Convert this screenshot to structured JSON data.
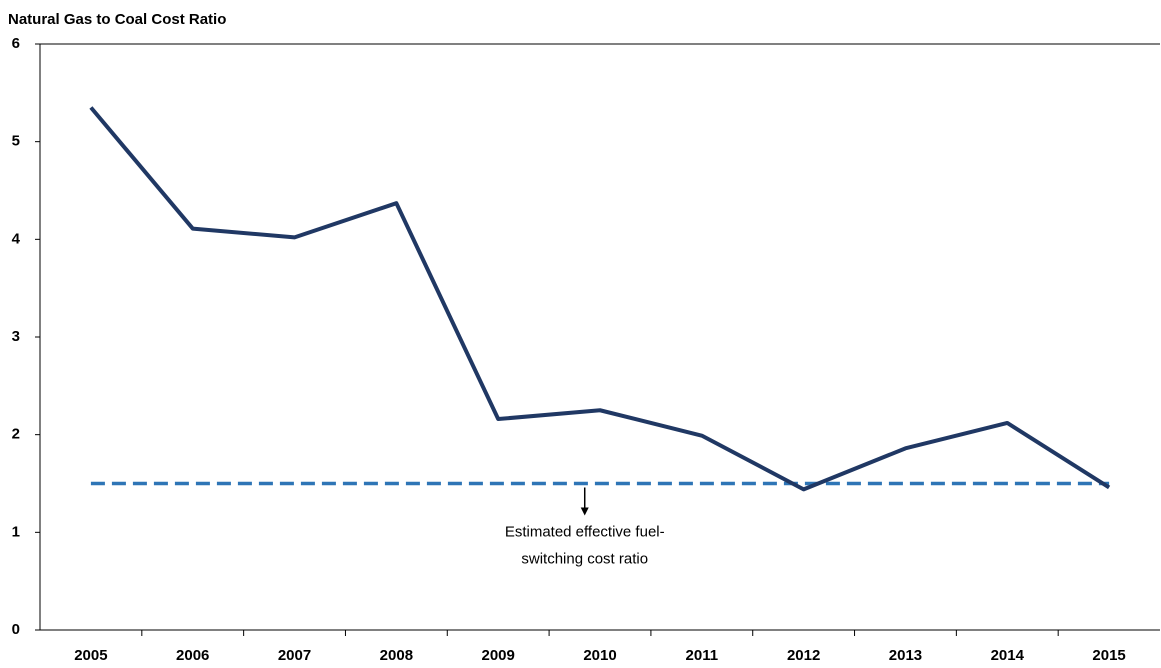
{
  "chart_data": {
    "type": "line",
    "title": "Natural Gas to Coal Cost Ratio",
    "categories": [
      "2005",
      "2006",
      "2007",
      "2008",
      "2009",
      "2010",
      "2011",
      "2012",
      "2013",
      "2014",
      "2015"
    ],
    "series": [
      {
        "color": "#203864",
        "values": [
          5.35,
          4.11,
          4.02,
          4.37,
          2.16,
          2.25,
          1.99,
          1.44,
          1.86,
          2.12,
          1.46
        ]
      }
    ],
    "reference_line": {
      "value": 1.5,
      "color": "#2e75b6"
    },
    "annotation": [
      "Estimated effective fuel-",
      "switching cost ratio"
    ],
    "ylim": [
      0,
      6
    ],
    "yticks": [
      0,
      1,
      2,
      3,
      4,
      5,
      6
    ],
    "grid": false
  }
}
